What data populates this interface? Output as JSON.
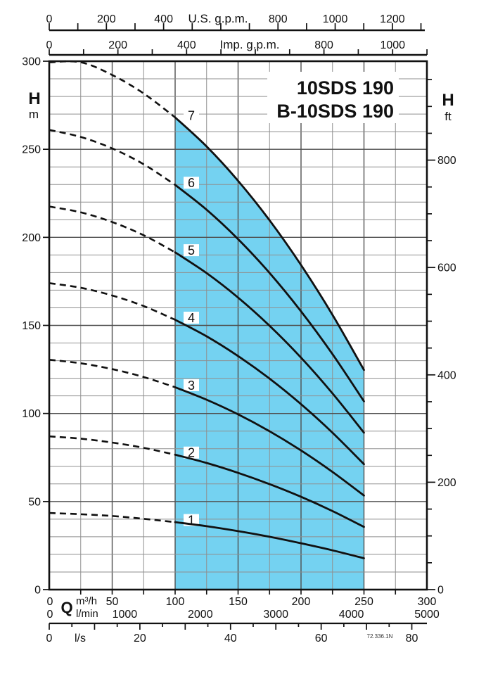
{
  "title": {
    "line1": "10SDS 190",
    "line2": "B-10SDS 190"
  },
  "code_note": "72.336.1N",
  "colors": {
    "operating_region": "#74D2F1",
    "curve": "#111111",
    "grid_minor": "#8f8f8f",
    "grid_major": "#4f4f4f",
    "axis": "#111111",
    "background": "#ffffff"
  },
  "axes": {
    "us_gpm": {
      "title": "U.S. g.p.m.",
      "labels": [
        0,
        200,
        400,
        800,
        1000,
        1200
      ],
      "tick_step": 100,
      "max_tick": 1300
    },
    "imp_gpm": {
      "title": "Imp. g.p.m.",
      "labels": [
        0,
        200,
        400,
        800,
        1000
      ],
      "tick_step": 100,
      "max_tick": 1100
    },
    "head_m": {
      "title": "H",
      "unit": "m",
      "labels": [
        300,
        250,
        200,
        150,
        100,
        50,
        0
      ],
      "grid_minor": 10,
      "grid_major": 50,
      "min": 0,
      "max": 300
    },
    "head_ft": {
      "title": "H",
      "unit": "ft",
      "labels": [
        800,
        600,
        400,
        200,
        0
      ],
      "tick_minor": 50,
      "label_step": 200,
      "max_tick": 950
    },
    "flow_m3h": {
      "symbol": "Q",
      "unit": "m³/h",
      "labels": [
        0,
        50,
        100,
        150,
        200,
        250,
        300
      ],
      "tick_minor": 25,
      "grid_major": 50,
      "min": 0,
      "max": 300
    },
    "flow_lmin": {
      "unit": "l/min",
      "labels": [
        0,
        1000,
        2000,
        3000,
        4000,
        5000
      ]
    },
    "flow_ls": {
      "unit": "l/s",
      "labels": [
        0,
        20,
        40,
        60,
        80
      ],
      "tick_minor": 5,
      "tick_major": 10,
      "max_tick": 80
    }
  },
  "operating_range": {
    "q_min_m3h": 100,
    "q_max_m3h": 250
  },
  "chart_data": {
    "type": "line",
    "title": "10SDS 190 / B-10SDS 190 submersible pump performance curves",
    "xlabel": "Q  m³/h · l/min · l/s · U.S. g.p.m. · Imp. g.p.m.",
    "ylabel": "H  m · ft",
    "xlim": [
      0,
      300
    ],
    "ylim": [
      0,
      300
    ],
    "grid": true,
    "x_m3h": [
      0,
      25,
      50,
      75,
      100,
      125,
      150,
      175,
      200,
      225,
      250
    ],
    "dashed_below_x": 100,
    "solid_range_x": [
      100,
      250
    ],
    "series": [
      {
        "name": "1",
        "stages": 1,
        "h_m": [
          43.5,
          42.8,
          41.8,
          40.2,
          38.3,
          36.0,
          33.2,
          30.0,
          26.3,
          22.3,
          17.8
        ]
      },
      {
        "name": "2",
        "stages": 2,
        "h_m": [
          87.0,
          85.7,
          83.5,
          80.5,
          76.6,
          71.9,
          66.3,
          59.9,
          52.7,
          44.6,
          35.6
        ]
      },
      {
        "name": "3",
        "stages": 3,
        "h_m": [
          130.5,
          128.5,
          125.2,
          120.7,
          114.9,
          107.8,
          99.5,
          89.9,
          79.0,
          66.8,
          53.4
        ]
      },
      {
        "name": "4",
        "stages": 4,
        "h_m": [
          174.0,
          171.4,
          167.0,
          161.0,
          153.2,
          143.8,
          132.6,
          119.8,
          105.3,
          89.1,
          71.2
        ]
      },
      {
        "name": "5",
        "stages": 5,
        "h_m": [
          217.5,
          214.2,
          208.7,
          201.2,
          191.5,
          179.7,
          165.8,
          149.8,
          131.7,
          111.4,
          89.1
        ]
      },
      {
        "name": "6",
        "stages": 6,
        "h_m": [
          261.0,
          257.0,
          250.5,
          241.5,
          229.8,
          215.7,
          199.0,
          179.8,
          158.0,
          133.7,
          106.9
        ]
      },
      {
        "name": "7",
        "stages": 7,
        "h_m": [
          304.5,
          299.9,
          292.2,
          281.7,
          268.1,
          251.6,
          232.1,
          209.7,
          184.3,
          156.0,
          124.7
        ]
      }
    ]
  }
}
